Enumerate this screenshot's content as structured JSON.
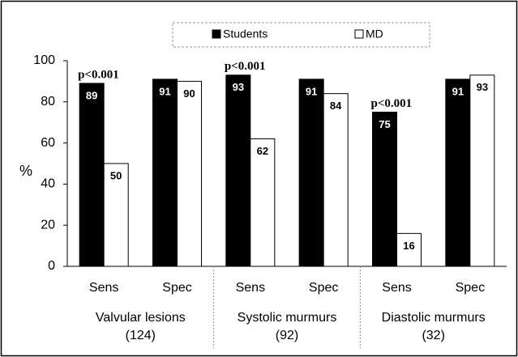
{
  "chart_data": {
    "type": "bar",
    "y_label": "%",
    "categories": [
      "Sens",
      "Spec",
      "Sens",
      "Spec",
      "Sens",
      "Spec"
    ],
    "groups": [
      {
        "name": "Valvular lesions",
        "n": "(124)"
      },
      {
        "name": "Systolic murmurs",
        "n": "(92)"
      },
      {
        "name": "Diastolic murmurs",
        "n": "(32)"
      }
    ],
    "series": [
      {
        "name": "Students",
        "color": "#000000",
        "values": [
          89,
          91,
          93,
          91,
          75,
          91
        ]
      },
      {
        "name": "MD",
        "color": "#ffffff",
        "values": [
          50,
          90,
          62,
          84,
          16,
          93
        ]
      }
    ],
    "annotations": [
      "p<0.001",
      null,
      "p<0.001",
      null,
      "p<0.001",
      null
    ],
    "ylim": [
      0,
      100
    ],
    "yticks": [
      0,
      20,
      40,
      60,
      80,
      100
    ]
  }
}
